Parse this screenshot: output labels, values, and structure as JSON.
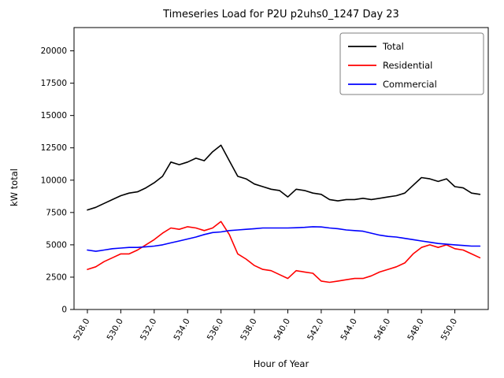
{
  "figure": {
    "title": "Timeseries Load for P2U p2uhs0_1247  Day 23",
    "xlabel": "Hour of Year",
    "ylabel": "kW total"
  },
  "chart_data": {
    "type": "line",
    "title": "Timeseries Load for P2U p2uhs0_1247  Day 23",
    "xlabel": "Hour of Year",
    "ylabel": "kW total",
    "xlim": [
      527.2,
      552.0
    ],
    "ylim": [
      0,
      21800
    ],
    "grid": false,
    "legend_position": "upper right",
    "xticks": [
      528,
      530,
      532,
      534,
      536,
      538,
      540,
      542,
      544,
      546,
      548,
      550
    ],
    "xtick_labels": [
      "528.0",
      "530.0",
      "532.0",
      "534.0",
      "536.0",
      "538.0",
      "540.0",
      "542.0",
      "544.0",
      "546.0",
      "548.0",
      "550.0"
    ],
    "yticks": [
      0,
      2500,
      5000,
      7500,
      10000,
      12500,
      15000,
      17500,
      20000
    ],
    "ytick_labels": [
      "0",
      "2500",
      "5000",
      "7500",
      "10000",
      "12500",
      "15000",
      "17500",
      "20000"
    ],
    "x": [
      528.0,
      528.5,
      529.0,
      529.5,
      530.0,
      530.5,
      531.0,
      531.5,
      532.0,
      532.5,
      533.0,
      533.5,
      534.0,
      534.5,
      535.0,
      535.5,
      536.0,
      536.5,
      537.0,
      537.5,
      538.0,
      538.5,
      539.0,
      539.5,
      540.0,
      540.5,
      541.0,
      541.5,
      542.0,
      542.5,
      543.0,
      543.5,
      544.0,
      544.5,
      545.0,
      545.5,
      546.0,
      546.5,
      547.0,
      547.5,
      548.0,
      548.5,
      549.0,
      549.5,
      550.0,
      550.5,
      551.0,
      551.5
    ],
    "series": [
      {
        "name": "Total",
        "color": "#000000",
        "values": [
          7700,
          7900,
          8200,
          8500,
          8800,
          9000,
          9100,
          9400,
          9800,
          10300,
          11400,
          11200,
          11400,
          11700,
          11500,
          12200,
          12700,
          11500,
          10300,
          10100,
          9700,
          9500,
          9300,
          9200,
          8700,
          9300,
          9200,
          9000,
          8900,
          8500,
          8400,
          8500,
          8500,
          8600,
          8500,
          8600,
          8700,
          8800,
          9000,
          9600,
          10200,
          10100,
          9900,
          10100,
          9500,
          9400,
          9000,
          8900
        ]
      },
      {
        "name": "Residential",
        "color": "#ff0000",
        "values": [
          3100,
          3300,
          3700,
          4000,
          4300,
          4300,
          4600,
          5000,
          5400,
          5900,
          6300,
          6200,
          6400,
          6300,
          6100,
          6300,
          6800,
          5800,
          4300,
          3900,
          3400,
          3100,
          3000,
          2700,
          2400,
          3000,
          2900,
          2800,
          2200,
          2100,
          2200,
          2300,
          2400,
          2400,
          2600,
          2900,
          3100,
          3300,
          3600,
          4300,
          4800,
          5000,
          4800,
          5000,
          4700,
          4600,
          4300,
          4000
        ]
      },
      {
        "name": "Commercial",
        "color": "#0000ff",
        "values": [
          4600,
          4500,
          4600,
          4700,
          4750,
          4800,
          4800,
          4850,
          4900,
          5000,
          5150,
          5300,
          5450,
          5600,
          5800,
          5950,
          6000,
          6100,
          6150,
          6200,
          6250,
          6300,
          6300,
          6300,
          6300,
          6320,
          6350,
          6400,
          6380,
          6300,
          6250,
          6150,
          6100,
          6050,
          5900,
          5750,
          5650,
          5600,
          5500,
          5400,
          5300,
          5200,
          5100,
          5050,
          5000,
          4950,
          4900,
          4900
        ]
      }
    ]
  }
}
